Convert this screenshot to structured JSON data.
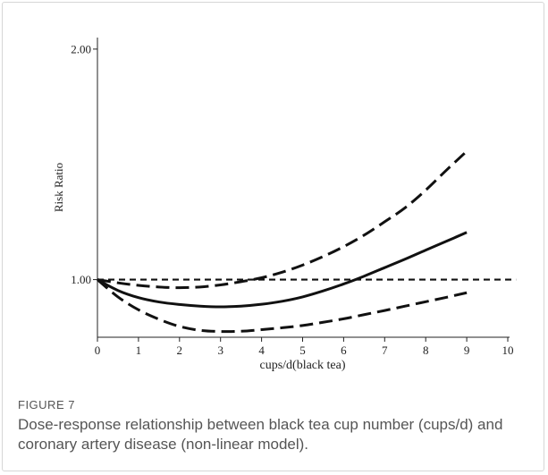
{
  "figure": {
    "label": "FIGURE 7",
    "caption": "Dose-response relationship between black tea cup number (cups/d) and coronary artery disease (non-linear model)."
  },
  "chart_data": {
    "type": "line",
    "title": "",
    "xlabel": "cups/d(black tea)",
    "ylabel": "Risk Ratio",
    "xlim": [
      0,
      10
    ],
    "ylim": [
      0.75,
      2.05
    ],
    "x_ticks": [
      0,
      1,
      2,
      3,
      4,
      5,
      6,
      7,
      8,
      9,
      10
    ],
    "y_ticks": [
      1.0,
      2.0
    ],
    "y_tick_labels": [
      "1.00",
      "2.00"
    ],
    "grid": false,
    "legend": "none",
    "reference_line": {
      "y": 1.0,
      "x_range": [
        0,
        10.2
      ],
      "style": "dashed"
    },
    "x": [
      0,
      0.5,
      1,
      1.5,
      2,
      2.5,
      3,
      3.5,
      4,
      4.5,
      5,
      5.5,
      6,
      6.5,
      7,
      7.5,
      8,
      8.5,
      9
    ],
    "series": [
      {
        "style": "solid",
        "values": [
          1.0,
          0.953,
          0.922,
          0.903,
          0.892,
          0.885,
          0.882,
          0.885,
          0.893,
          0.906,
          0.925,
          0.951,
          0.981,
          1.015,
          1.052,
          1.089,
          1.128,
          1.166,
          1.205
        ]
      },
      {
        "style": "dashed",
        "values": [
          1.0,
          0.986,
          0.975,
          0.968,
          0.965,
          0.968,
          0.977,
          0.991,
          1.008,
          1.032,
          1.063,
          1.1,
          1.143,
          1.193,
          1.251,
          1.312,
          1.388,
          1.474,
          1.557
        ]
      },
      {
        "style": "dashed",
        "values": [
          1.0,
          0.925,
          0.869,
          0.828,
          0.797,
          0.78,
          0.775,
          0.776,
          0.783,
          0.791,
          0.801,
          0.815,
          0.83,
          0.848,
          0.866,
          0.885,
          0.904,
          0.923,
          0.943
        ]
      }
    ]
  }
}
